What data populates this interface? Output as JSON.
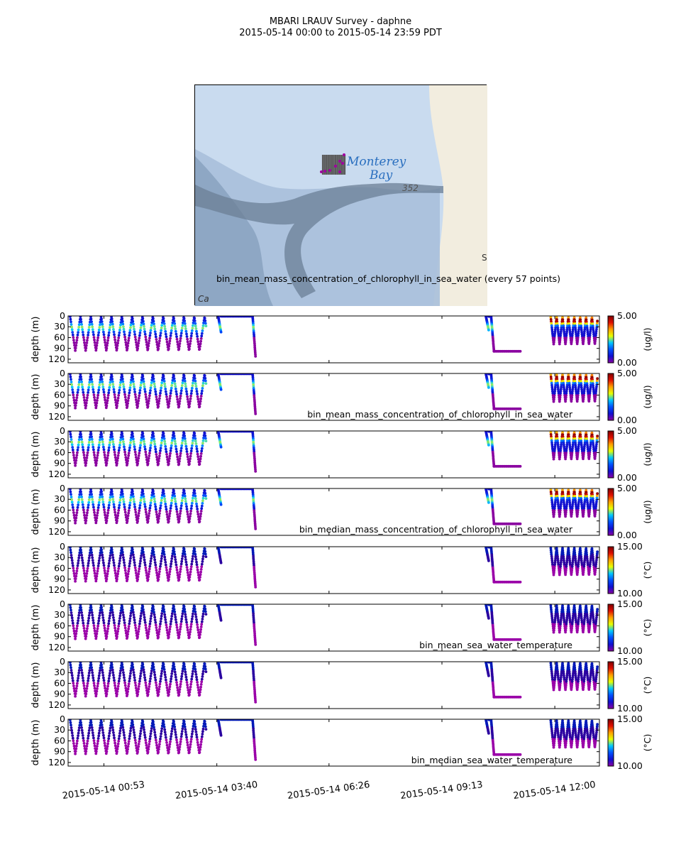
{
  "title": {
    "line1": "MBARI LRAUV Survey - daphne",
    "line2": "2015-05-14 00:00  to  2015-05-14 23:59 PDT"
  },
  "map": {
    "place_label_1": "Monterey",
    "place_label_2": "Bay",
    "depth_label": "352",
    "partial_label_left": "Ca",
    "partial_label_right": "S",
    "caption": "bin_mean_mass_concentration_of_chlorophyll_in_sea_water (every 57 points)",
    "colors": {
      "land": "#f2eddf",
      "shelf": "#c9dbef",
      "deep": "#8ea7c4",
      "canyon": "#6b7f96",
      "track": "#5a5a5a",
      "marker": "#a000a0"
    }
  },
  "chart_data": {
    "type": "scatter",
    "time_axis": {
      "range_hours": [
        0,
        13.1
      ],
      "ticks": [
        {
          "hour": 0.883,
          "label": "2015-05-14 00:53"
        },
        {
          "hour": 3.667,
          "label": "2015-05-14 03:40"
        },
        {
          "hour": 6.433,
          "label": "2015-05-14 06:26"
        },
        {
          "hour": 9.217,
          "label": "2015-05-14 09:13"
        },
        {
          "hour": 12.0,
          "label": "2015-05-14 12:00"
        }
      ]
    },
    "depth_axis": {
      "label": "depth (m)",
      "ylim": [
        130,
        0
      ],
      "ticks": [
        "0",
        "30",
        "60",
        "90",
        "120"
      ]
    },
    "segments": [
      {
        "type": "yoyo",
        "start": 0.05,
        "end": 3.4,
        "period": 0.255,
        "top": 2,
        "bottom": 96
      },
      {
        "type": "drop",
        "start": 3.7,
        "surface_end": 4.62,
        "bottom": 112
      },
      {
        "type": "drop",
        "start": 10.3,
        "surface_end": 10.5,
        "bottom": 98,
        "hold_end": 11.15
      },
      {
        "type": "yoyo",
        "start": 11.9,
        "end": 13.05,
        "period": 0.145,
        "top": 4,
        "bottom": 78
      }
    ],
    "panels": [
      {
        "variable": "chl",
        "caption": "",
        "cb_min": "0.00",
        "cb_max": "5.00",
        "units": "(ug/l)"
      },
      {
        "variable": "chl",
        "caption": "bin_mean_mass_concentration_of_chlorophyll_in_sea_water",
        "cb_min": "0.00",
        "cb_max": "5.00",
        "units": "(ug/l)"
      },
      {
        "variable": "chl",
        "caption": "",
        "cb_min": "0.00",
        "cb_max": "5.00",
        "units": "(ug/l)"
      },
      {
        "variable": "chl",
        "caption": "bin_median_mass_concentration_of_chlorophyll_in_sea_water",
        "cb_min": "0.00",
        "cb_max": "5.00",
        "units": "(ug/l)"
      },
      {
        "variable": "temp",
        "caption": "",
        "cb_min": "10.00",
        "cb_max": "15.00",
        "units": "(°C)"
      },
      {
        "variable": "temp",
        "caption": "bin_mean_sea_water_temperature",
        "cb_min": "10.00",
        "cb_max": "15.00",
        "units": "(°C)"
      },
      {
        "variable": "temp",
        "caption": "",
        "cb_min": "10.00",
        "cb_max": "15.00",
        "units": "(°C)"
      },
      {
        "variable": "temp",
        "caption": "bin_median_sea_water_temperature",
        "cb_min": "10.00",
        "cb_max": "15.00",
        "units": "(°C)"
      }
    ],
    "colormap": [
      "#8a00a0",
      "#1010d0",
      "#0050ff",
      "#00c8ff",
      "#e8ff00",
      "#ffa000",
      "#e01000",
      "#800000"
    ]
  }
}
